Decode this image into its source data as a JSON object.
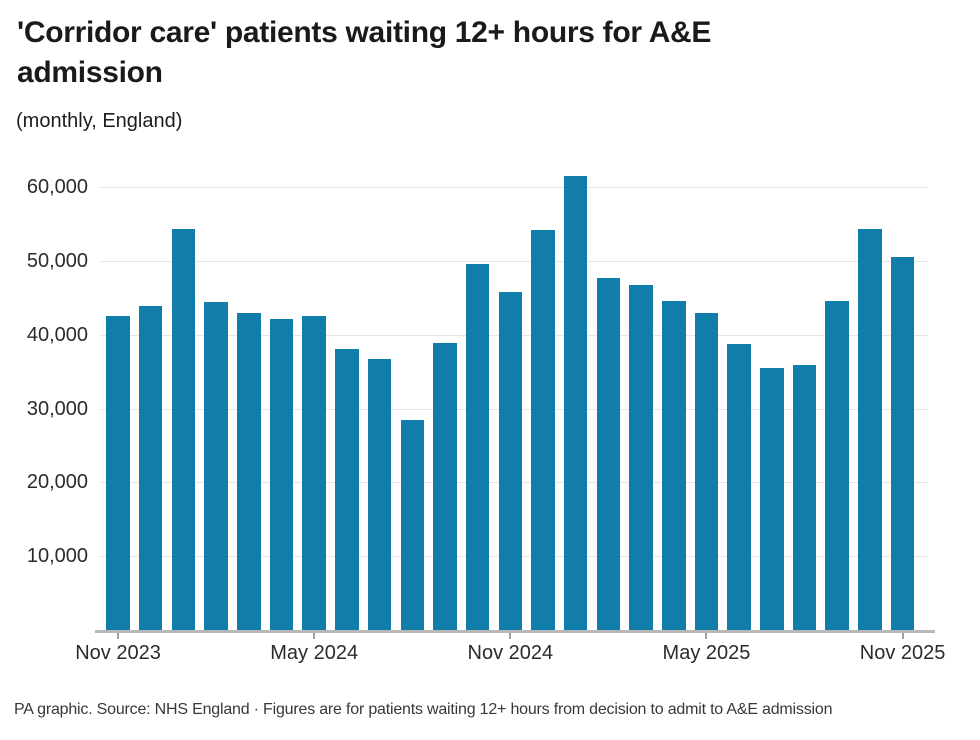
{
  "header": {
    "title_lines": [
      "'Corridor care' patients waiting 12+ hours for A&E",
      "admission"
    ],
    "subtitle": "(monthly, England)"
  },
  "footer": {
    "note": "PA graphic. Source: NHS England · Figures are for patients waiting 12+ hours from decision to admit to A&E admission"
  },
  "chart_data": {
    "type": "bar",
    "title": "'Corridor care' patients waiting 12+ hours for A&E admission",
    "subtitle": "(monthly, England)",
    "categories": [
      "Nov 2023",
      "Dec 2023",
      "Jan 2024",
      "Feb 2024",
      "Mar 2024",
      "Apr 2024",
      "May 2024",
      "Jun 2024",
      "Jul 2024",
      "Aug 2024",
      "Sep 2024",
      "Oct 2024",
      "Nov 2024",
      "Dec 2024",
      "Jan 2025",
      "Feb 2025",
      "Mar 2025",
      "Apr 2025",
      "May 2025",
      "Jun 2025",
      "Jul 2025",
      "Aug 2025",
      "Sep 2025",
      "Oct 2025",
      "Nov 2025"
    ],
    "values": [
      42500,
      43900,
      54300,
      44400,
      43000,
      42100,
      42500,
      38100,
      36700,
      28500,
      38900,
      49600,
      45800,
      54200,
      61500,
      47700,
      46800,
      44600,
      42900,
      38700,
      35500,
      35900,
      44600,
      54300,
      50600
    ],
    "x_tick_indices": [
      0,
      6,
      12,
      18,
      24
    ],
    "x_tick_labels": [
      "Nov 2023",
      "May 2024",
      "Nov 2024",
      "May 2025",
      "Nov 2025"
    ],
    "y_ticks": [
      10000,
      20000,
      30000,
      40000,
      50000,
      60000
    ],
    "y_tick_labels": [
      "10,000",
      "20,000",
      "30,000",
      "40,000",
      "50,000",
      "60,000"
    ],
    "ylim": [
      0,
      63700
    ],
    "xlabel": "",
    "ylabel": "",
    "bar_color": "#117dab",
    "grid": true,
    "legend": false
  }
}
